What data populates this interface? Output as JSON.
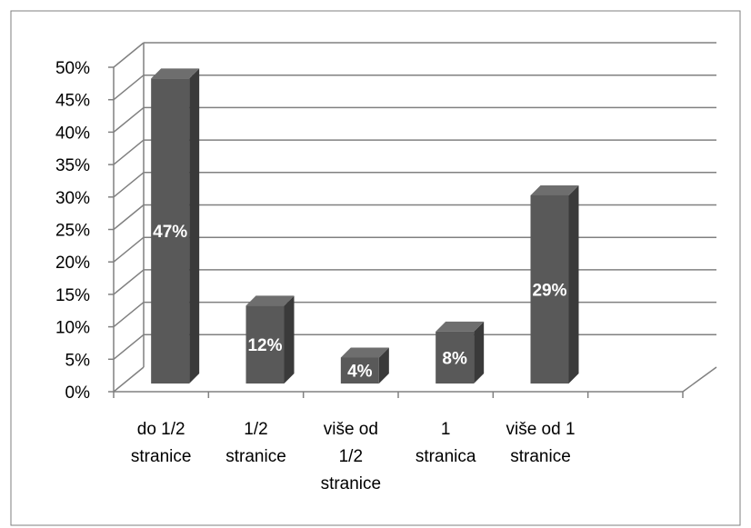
{
  "chart_data": {
    "type": "bar",
    "title": "",
    "xlabel": "",
    "ylabel": "",
    "categories": [
      [
        "do 1/2",
        "stranice"
      ],
      [
        "1/2",
        "stranice"
      ],
      [
        "više od",
        "1/2",
        "stranice"
      ],
      [
        "1",
        "stranica"
      ],
      [
        "više od 1",
        "stranice"
      ]
    ],
    "values": [
      47,
      12,
      4,
      8,
      29
    ],
    "data_labels": [
      "47%",
      "12%",
      "4%",
      "8%",
      "29%"
    ],
    "yticks": [
      "0%",
      "5%",
      "10%",
      "15%",
      "20%",
      "25%",
      "30%",
      "35%",
      "40%",
      "45%",
      "50%"
    ],
    "ylim": [
      0,
      50
    ],
    "grid": true,
    "legend": "none",
    "colors": {
      "bar_front": "#595959",
      "bar_side": "#3a3a3a",
      "bar_top": "#6e6e6e",
      "grid": "#808080",
      "border": "#7f7f7f"
    }
  }
}
